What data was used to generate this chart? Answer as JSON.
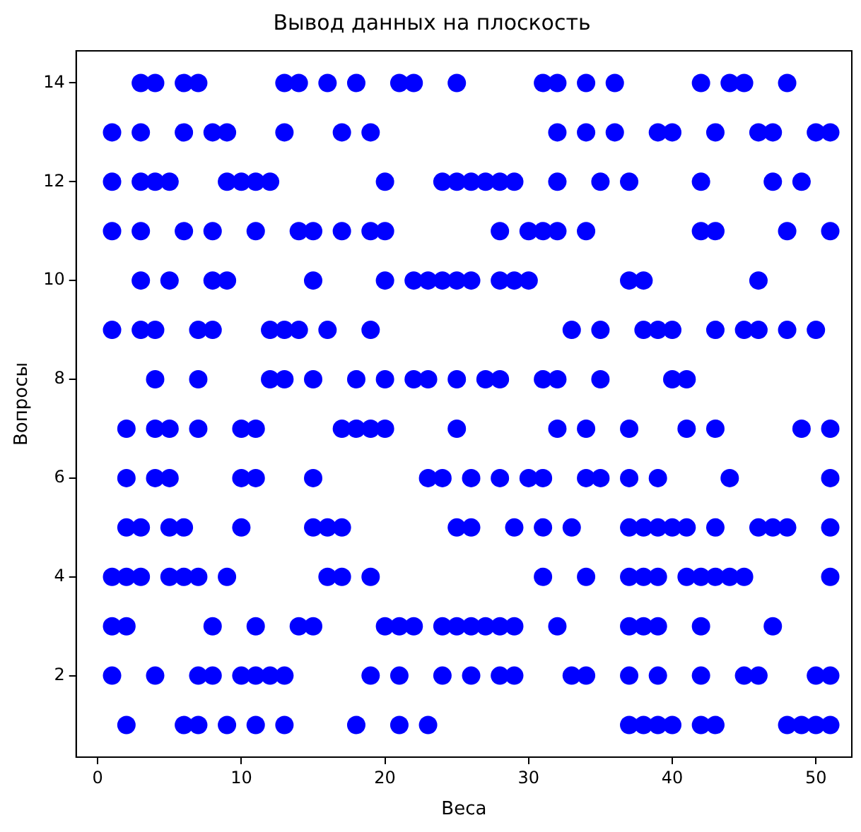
{
  "chart_data": {
    "type": "scatter",
    "title": "Вывод данных на плоскость",
    "xlabel": "Веса",
    "ylabel": "Вопросы",
    "marker": "circle",
    "grid": false,
    "legend": false,
    "xlim": [
      -1.5,
      52.5
    ],
    "ylim": [
      0.35,
      14.65
    ],
    "xticks": [
      0,
      10,
      20,
      30,
      40,
      50
    ],
    "yticks": [
      2,
      4,
      6,
      8,
      10,
      12,
      14
    ],
    "series": [
      {
        "color": "#0000ff",
        "x": [
          3,
          4,
          6,
          7,
          13,
          14,
          16,
          18,
          21,
          22,
          25,
          31,
          32,
          34,
          36,
          42,
          44,
          45,
          48
        ],
        "values": [
          14,
          14,
          14,
          14,
          14,
          14,
          14,
          14,
          14,
          14,
          14,
          14,
          14,
          14,
          14,
          14,
          14,
          14,
          14
        ]
      },
      {
        "color": "#0000ff",
        "x": [
          1,
          3,
          6,
          8,
          9,
          13,
          17,
          19,
          32,
          34,
          36,
          39,
          40,
          43,
          46,
          47,
          50,
          51
        ],
        "values": [
          13,
          13,
          13,
          13,
          13,
          13,
          13,
          13,
          13,
          13,
          13,
          13,
          13,
          13,
          13,
          13,
          13,
          13
        ]
      },
      {
        "color": "#0000ff",
        "x": [
          1,
          3,
          4,
          5,
          9,
          10,
          11,
          12,
          20,
          24,
          25,
          26,
          27,
          28,
          29,
          32,
          35,
          37,
          42,
          47,
          49
        ],
        "values": [
          12,
          12,
          12,
          12,
          12,
          12,
          12,
          12,
          12,
          12,
          12,
          12,
          12,
          12,
          12,
          12,
          12,
          12,
          12,
          12,
          12
        ]
      },
      {
        "color": "#0000ff",
        "x": [
          1,
          3,
          6,
          8,
          11,
          14,
          15,
          17,
          19,
          20,
          28,
          30,
          31,
          32,
          34,
          42,
          43,
          48,
          51
        ],
        "values": [
          11,
          11,
          11,
          11,
          11,
          11,
          11,
          11,
          11,
          11,
          11,
          11,
          11,
          11,
          11,
          11,
          11,
          11,
          11
        ]
      },
      {
        "color": "#0000ff",
        "x": [
          3,
          5,
          8,
          9,
          15,
          20,
          22,
          23,
          24,
          25,
          26,
          28,
          29,
          30,
          37,
          38,
          46
        ],
        "values": [
          10,
          10,
          10,
          10,
          10,
          10,
          10,
          10,
          10,
          10,
          10,
          10,
          10,
          10,
          10,
          10,
          10
        ]
      },
      {
        "color": "#0000ff",
        "x": [
          1,
          3,
          4,
          7,
          8,
          12,
          13,
          14,
          16,
          19,
          33,
          35,
          38,
          39,
          40,
          43,
          45,
          46,
          48,
          50
        ],
        "values": [
          9,
          9,
          9,
          9,
          9,
          9,
          9,
          9,
          9,
          9,
          9,
          9,
          9,
          9,
          9,
          9,
          9,
          9,
          9,
          9
        ]
      },
      {
        "color": "#0000ff",
        "x": [
          4,
          7,
          12,
          13,
          15,
          18,
          20,
          22,
          23,
          25,
          27,
          28,
          31,
          32,
          35,
          40,
          41
        ],
        "values": [
          8,
          8,
          8,
          8,
          8,
          8,
          8,
          8,
          8,
          8,
          8,
          8,
          8,
          8,
          8,
          8,
          8
        ]
      },
      {
        "color": "#0000ff",
        "x": [
          2,
          4,
          5,
          7,
          10,
          11,
          17,
          18,
          19,
          20,
          25,
          32,
          34,
          37,
          41,
          43,
          49,
          51
        ],
        "values": [
          7,
          7,
          7,
          7,
          7,
          7,
          7,
          7,
          7,
          7,
          7,
          7,
          7,
          7,
          7,
          7,
          7,
          7
        ]
      },
      {
        "color": "#0000ff",
        "x": [
          2,
          4,
          5,
          10,
          11,
          15,
          23,
          24,
          26,
          28,
          30,
          31,
          34,
          35,
          37,
          39,
          44,
          51
        ],
        "values": [
          6,
          6,
          6,
          6,
          6,
          6,
          6,
          6,
          6,
          6,
          6,
          6,
          6,
          6,
          6,
          6,
          6,
          6
        ]
      },
      {
        "color": "#0000ff",
        "x": [
          2,
          3,
          5,
          6,
          10,
          15,
          16,
          17,
          25,
          26,
          29,
          31,
          33,
          37,
          38,
          39,
          40,
          41,
          43,
          46,
          47,
          48,
          51
        ],
        "values": [
          5,
          5,
          5,
          5,
          5,
          5,
          5,
          5,
          5,
          5,
          5,
          5,
          5,
          5,
          5,
          5,
          5,
          5,
          5,
          5,
          5,
          5,
          5
        ]
      },
      {
        "color": "#0000ff",
        "x": [
          1,
          2,
          3,
          5,
          6,
          7,
          9,
          16,
          17,
          19,
          31,
          34,
          37,
          38,
          39,
          41,
          42,
          43,
          44,
          45,
          51
        ],
        "values": [
          4,
          4,
          4,
          4,
          4,
          4,
          4,
          4,
          4,
          4,
          4,
          4,
          4,
          4,
          4,
          4,
          4,
          4,
          4,
          4,
          4
        ]
      },
      {
        "color": "#0000ff",
        "x": [
          1,
          2,
          8,
          11,
          14,
          15,
          20,
          21,
          22,
          24,
          25,
          26,
          27,
          28,
          29,
          32,
          37,
          38,
          39,
          42,
          47
        ],
        "values": [
          3,
          3,
          3,
          3,
          3,
          3,
          3,
          3,
          3,
          3,
          3,
          3,
          3,
          3,
          3,
          3,
          3,
          3,
          3,
          3,
          3
        ]
      },
      {
        "color": "#0000ff",
        "x": [
          1,
          4,
          7,
          8,
          10,
          11,
          12,
          13,
          19,
          21,
          24,
          26,
          28,
          29,
          33,
          34,
          37,
          39,
          42,
          45,
          46,
          50,
          51
        ],
        "values": [
          2,
          2,
          2,
          2,
          2,
          2,
          2,
          2,
          2,
          2,
          2,
          2,
          2,
          2,
          2,
          2,
          2,
          2,
          2,
          2,
          2,
          2,
          2
        ]
      },
      {
        "color": "#0000ff",
        "x": [
          2,
          6,
          7,
          9,
          11,
          13,
          18,
          21,
          23,
          37,
          38,
          39,
          40,
          42,
          43,
          48,
          49,
          50,
          51
        ],
        "values": [
          1,
          1,
          1,
          1,
          1,
          1,
          1,
          1,
          1,
          1,
          1,
          1,
          1,
          1,
          1,
          1,
          1,
          1,
          1
        ]
      }
    ]
  }
}
